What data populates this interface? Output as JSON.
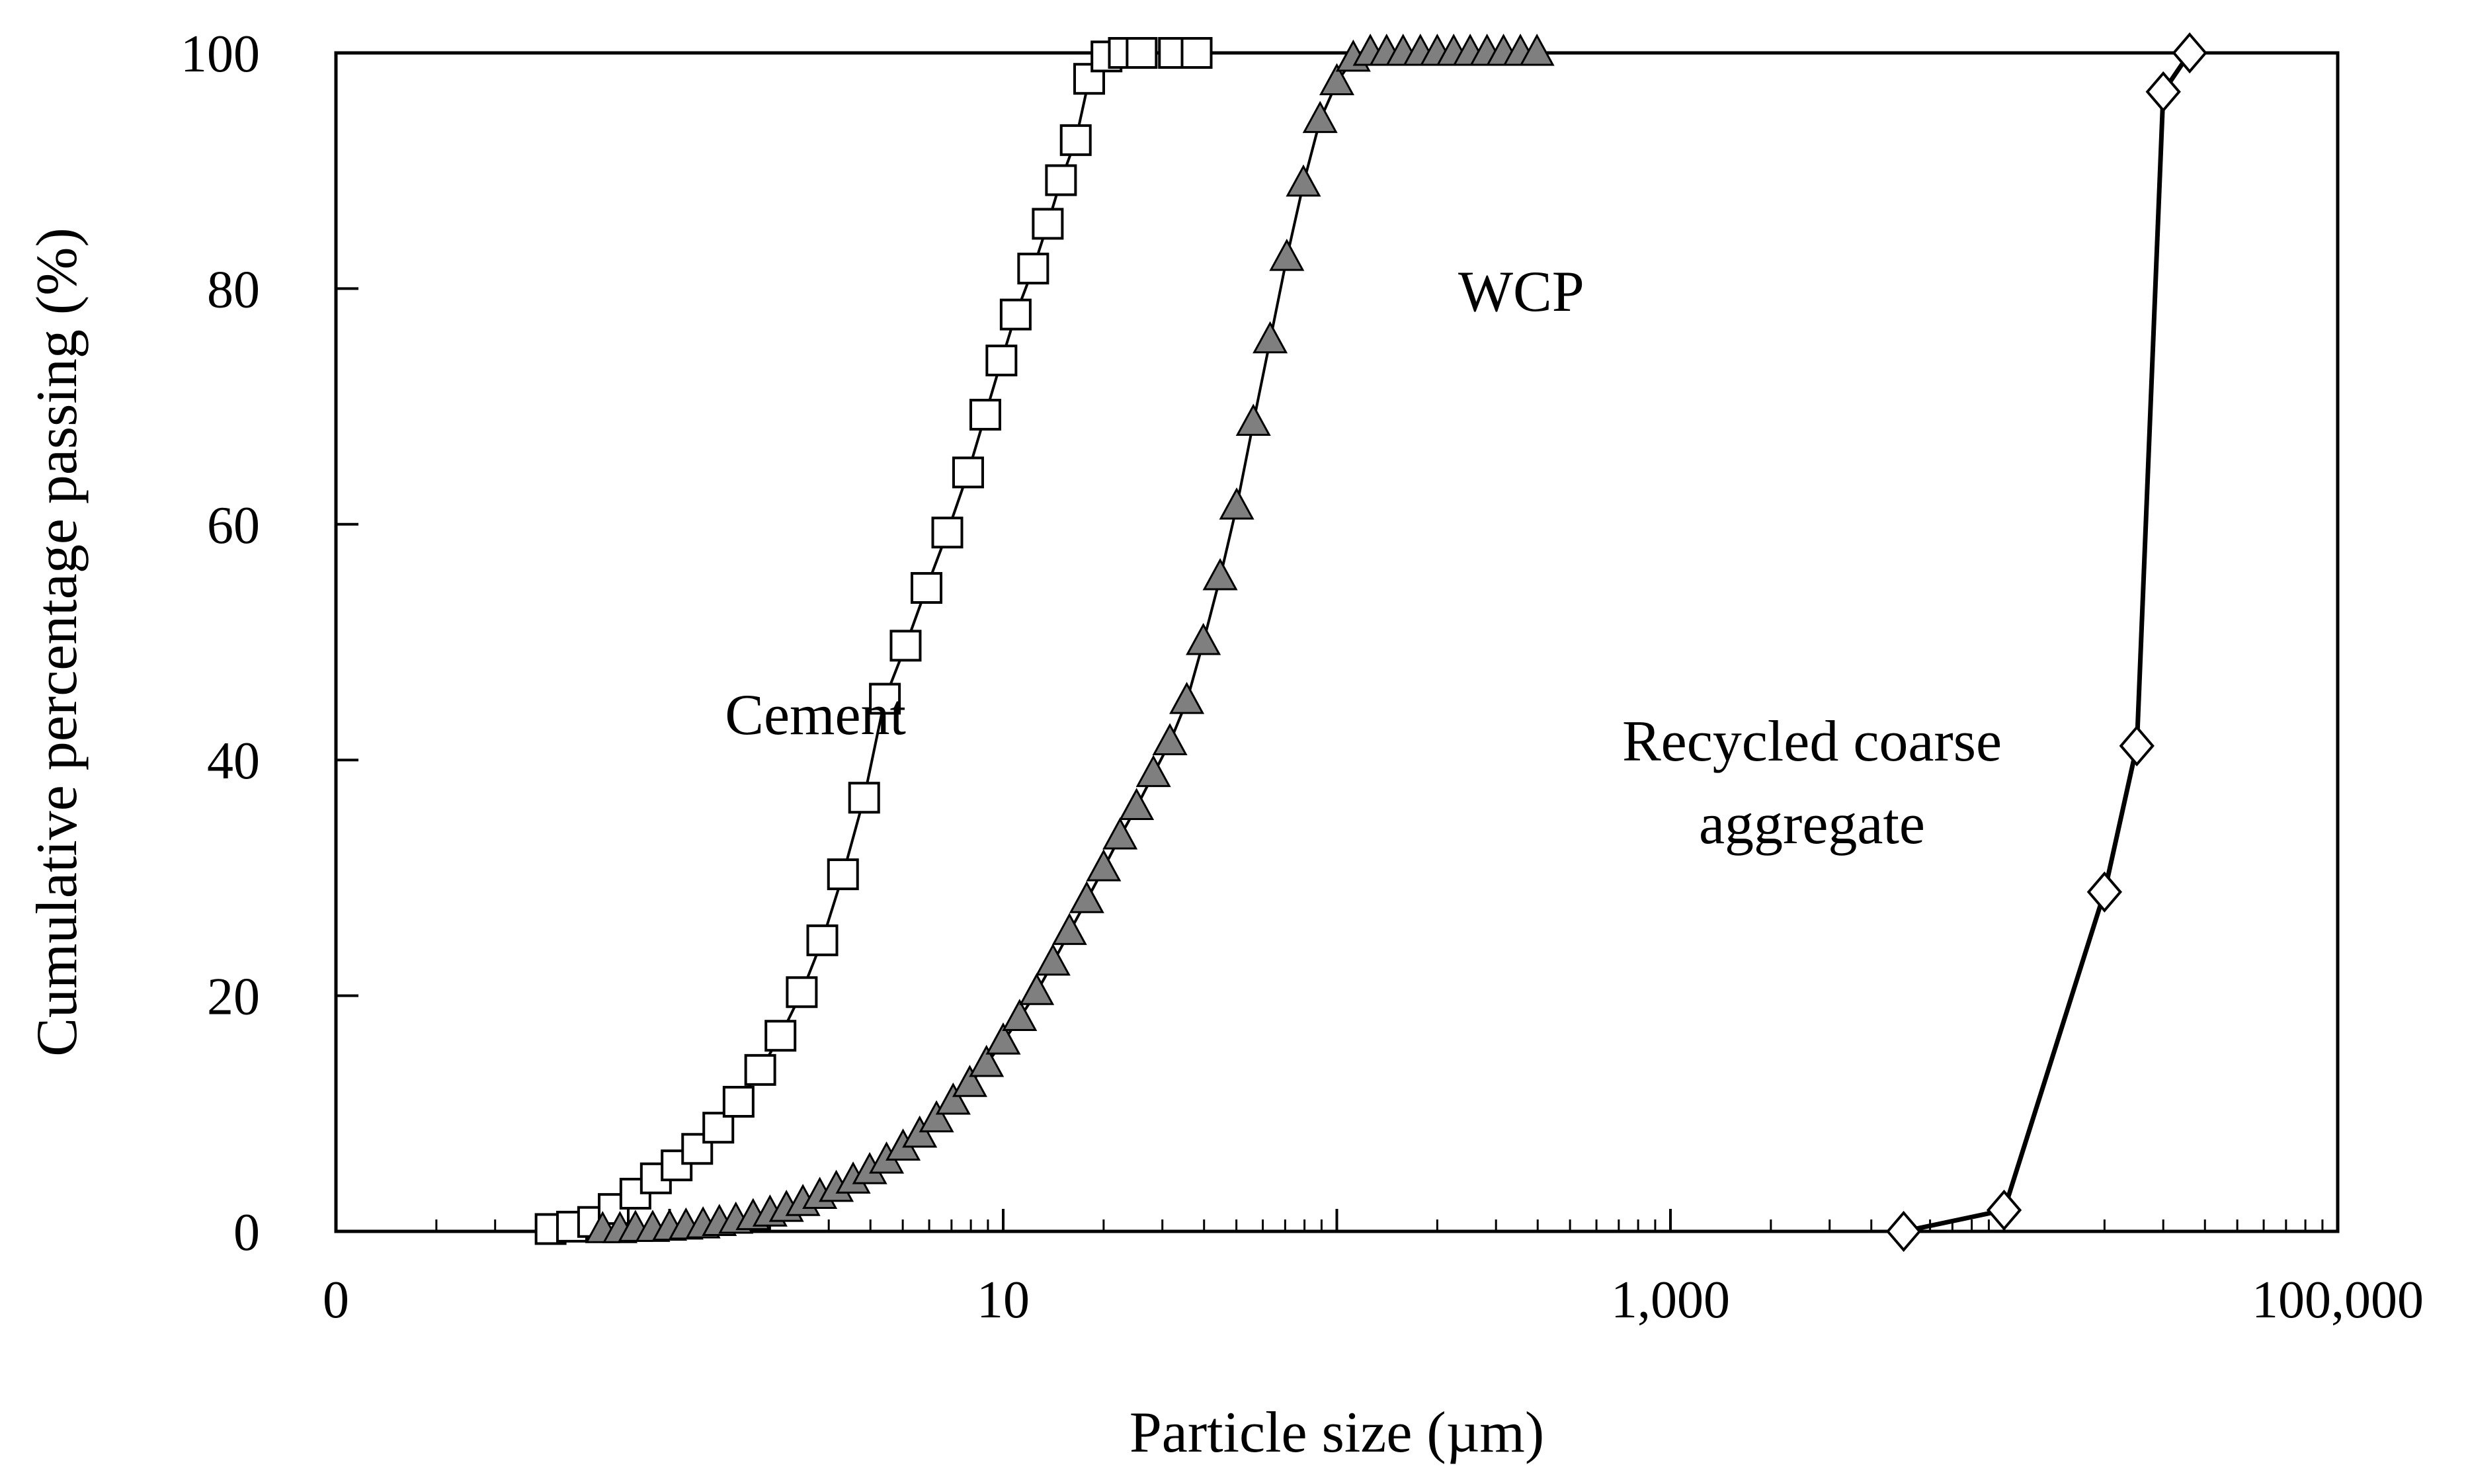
{
  "chart_data": {
    "type": "scatter",
    "title": "",
    "xlabel": "Particle size (µm)",
    "ylabel": "Cumulative percentage passing (%)",
    "x_scale": "log",
    "xlim": [
      0.1,
      100000
    ],
    "ylim": [
      0,
      100
    ],
    "x_ticks": [
      {
        "value": 0.1,
        "label": "0"
      },
      {
        "value": 10,
        "label": "10"
      },
      {
        "value": 1000,
        "label": "1,000"
      },
      {
        "value": 100000,
        "label": "100,000"
      }
    ],
    "y_ticks": [
      0,
      20,
      40,
      60,
      80,
      100
    ],
    "grid": false,
    "legend": "none",
    "annotations": [
      {
        "text": "Cement",
        "x": 2.2,
        "y": 44
      },
      {
        "text": "WCP",
        "x": 450,
        "y": 79
      },
      {
        "text": "Recycled coarse",
        "x": 5000,
        "y": 41
      },
      {
        "text": "aggregate",
        "x": 5000,
        "y": 33
      }
    ],
    "series": [
      {
        "name": "Cement",
        "marker": "square",
        "color": "#ffffff",
        "x": [
          0.44,
          0.51,
          0.59,
          0.68,
          0.79,
          0.91,
          1.05,
          1.21,
          1.4,
          1.61,
          1.87,
          2.15,
          2.49,
          2.87,
          3.31,
          3.83,
          4.42,
          5.1,
          5.89,
          6.8,
          7.85,
          8.84,
          9.88,
          10.9,
          12.3,
          13.6,
          14.9,
          16.5,
          18.1,
          20.4,
          23.0,
          26.0,
          32.5,
          38.0
        ],
        "y": [
          0.2,
          0.4,
          0.8,
          1.9,
          3.2,
          4.5,
          5.6,
          7.0,
          8.8,
          11.0,
          13.7,
          16.6,
          20.3,
          24.7,
          30.3,
          36.8,
          45.2,
          49.7,
          54.6,
          59.3,
          64.4,
          69.3,
          73.9,
          77.8,
          81.7,
          85.5,
          89.2,
          92.6,
          97.8,
          99.7,
          100.0,
          100.0,
          100.0,
          100.0
        ]
      },
      {
        "name": "WCP",
        "marker": "triangle",
        "color": "#7f7f7f",
        "x": [
          0.63,
          0.71,
          0.79,
          0.89,
          1.0,
          1.12,
          1.26,
          1.41,
          1.58,
          1.78,
          2.0,
          2.24,
          2.51,
          2.82,
          3.16,
          3.55,
          3.98,
          4.47,
          5.01,
          5.62,
          6.31,
          7.08,
          7.94,
          8.91,
          10.0,
          11.2,
          12.6,
          14.1,
          15.8,
          17.8,
          20.0,
          22.4,
          25.1,
          28.2,
          31.6,
          35.5,
          39.8,
          44.7,
          50.1,
          56.2,
          63.1,
          70.8,
          79.4,
          89.1,
          100,
          112,
          126,
          141,
          158,
          178,
          200,
          224,
          251,
          282,
          316,
          355,
          398
        ],
        "y": [
          0.1,
          0.1,
          0.2,
          0.2,
          0.3,
          0.4,
          0.5,
          0.7,
          0.9,
          1.2,
          1.5,
          1.9,
          2.4,
          3.0,
          3.6,
          4.3,
          5.1,
          6.0,
          7.1,
          8.2,
          9.5,
          11.0,
          12.5,
          14.2,
          16.1,
          18.1,
          20.3,
          22.8,
          25.4,
          28.1,
          30.8,
          33.5,
          36.0,
          38.8,
          41.5,
          45.0,
          50.0,
          55.5,
          61.5,
          68.6,
          75.6,
          82.6,
          88.9,
          94.3,
          97.5,
          99.5,
          100.0,
          100.0,
          100.0,
          100.0,
          100.0,
          100.0,
          100.0,
          100.0,
          100.0,
          100.0,
          100.0
        ]
      },
      {
        "name": "Recycled coarse aggregate",
        "marker": "diamond",
        "color": "#ffffff",
        "x": [
          5000,
          10000,
          20000,
          25000,
          30000,
          36000
        ],
        "y": [
          0.0,
          1.8,
          28.8,
          41.2,
          96.7,
          100.0
        ]
      }
    ]
  }
}
